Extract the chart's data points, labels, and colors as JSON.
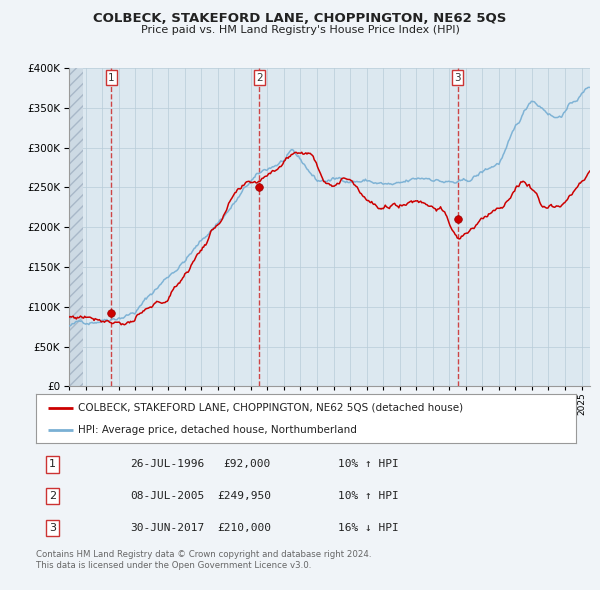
{
  "title": "COLBECK, STAKEFORD LANE, CHOPPINGTON, NE62 5QS",
  "subtitle": "Price paid vs. HM Land Registry's House Price Index (HPI)",
  "legend_line1": "COLBECK, STAKEFORD LANE, CHOPPINGTON, NE62 5QS (detached house)",
  "legend_line2": "HPI: Average price, detached house, Northumberland",
  "footer1": "Contains HM Land Registry data © Crown copyright and database right 2024.",
  "footer2": "This data is licensed under the Open Government Licence v3.0.",
  "sales": [
    {
      "num": 1,
      "date": "26-JUL-1996",
      "price": 92000,
      "hpi_pct": "10%",
      "hpi_dir": "↑"
    },
    {
      "num": 2,
      "date": "08-JUL-2005",
      "price": 249950,
      "hpi_pct": "10%",
      "hpi_dir": "↑"
    },
    {
      "num": 3,
      "date": "30-JUN-2017",
      "price": 210000,
      "hpi_pct": "16%",
      "hpi_dir": "↓"
    }
  ],
  "sale_years": [
    1996.57,
    2005.52,
    2017.5
  ],
  "sale_prices": [
    92000,
    249950,
    210000
  ],
  "ylim": [
    0,
    400000
  ],
  "yticks": [
    0,
    50000,
    100000,
    150000,
    200000,
    250000,
    300000,
    350000,
    400000
  ],
  "xmin": 1994.0,
  "xmax": 2025.5,
  "fig_bg_color": "#f0f4f8",
  "plot_bg_color": "#dce8f0",
  "grid_color": "#b8ccd8",
  "red_line_color": "#cc0000",
  "blue_line_color": "#7ab0d4",
  "dashed_line_color": "#cc3333",
  "title_color": "#222222",
  "border_color": "#aaaaaa",
  "label_box_edge": "#cc3333",
  "footer_color": "#666666"
}
